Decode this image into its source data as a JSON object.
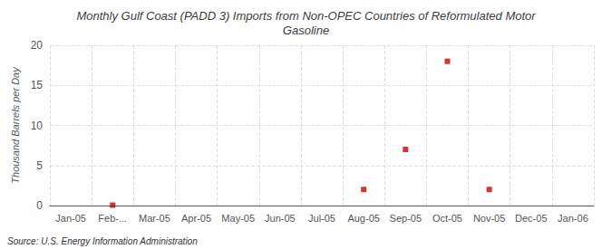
{
  "chart_data": {
    "type": "scatter",
    "title": "Monthly Gulf Coast (PADD 3) Imports from Non-OPEC Countries of Reformulated Motor\nGasoline",
    "ylabel": "Thousand Barrels per Day",
    "annotation": "Source: U.S. Energy Information Administration",
    "categories": [
      "Jan-05",
      "Feb-...",
      "Mar-05",
      "Apr-05",
      "May-05",
      "Jun-05",
      "Jul-05",
      "Aug-05",
      "Sep-05",
      "Oct-05",
      "Nov-05",
      "Dec-05",
      "Jan-06"
    ],
    "values": [
      null,
      0.05,
      null,
      null,
      null,
      null,
      null,
      2.0,
      7.0,
      18.0,
      2.0,
      null,
      null
    ],
    "color": "#cc0000",
    "marker": "square",
    "ylim": [
      0,
      20
    ],
    "yticks": [
      0,
      5,
      10,
      15,
      20
    ],
    "grid": true
  }
}
